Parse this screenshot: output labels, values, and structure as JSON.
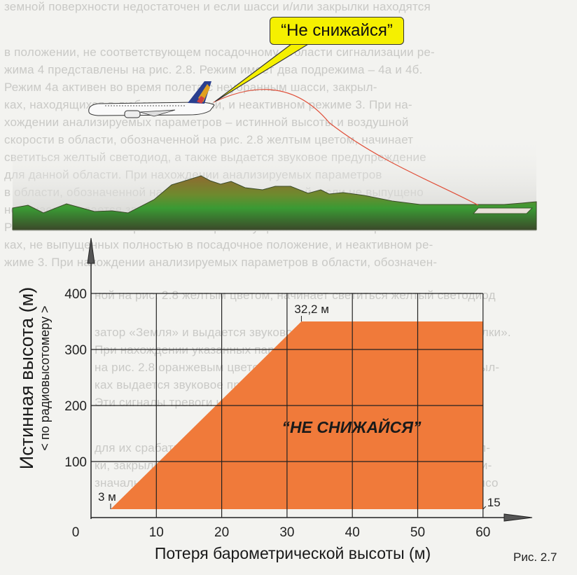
{
  "background_text": [
    "земной поверхности недостаточен и если шасси и/или закрылки находятся",
    "в положении, не соответствующем посадочному. Области сигнализации ре-",
    "жима 4 представлены на рис. 2.8. Режим имеет два подрежима – 4а и 4б.",
    "      Режим 4а активен во время полета с неубранным шасси, закрыл-",
    "ках, находящихся в любом положении, и неактивном режиме 3. При на-",
    "хождении анализируемых параметров – истинной высоты и воздушной",
    "скорости в области, обозначенной на рис. 2.8 желтым цветом, начинает",
    "светиться желтый светодиод, а также выдается звуковое предупреждение",
    "для данной области. При нахождении анализируемых параметров",
    "в области, обозначенной на рис. 2.8 и расположенной, если не выпущено",
    "ном шасси выдается звуковое предупреждение «Низко, шасси».",
    "      Режим 4б активен во время полета при выпущенном шасси и закрыл-",
    "ках, не выпущенных полностью в посадочное положение, и неактивном ре-",
    "жиме 3. При нахождении анализируемых параметров в области, обозначен-",
    "ной на рис. 2.8 желтым цветом, начинает светиться желтый светодиод",
    "затор «Земля» и выдается звуковое предупреждение «Низко, закрылки».",
    "      При нахождении указанных параметров в области, обозначенной",
    "на рис. 2.8 оранжевым цветом, при не выпущенных полностью закрыл-",
    "ках выдается звуковое предупреждение «Низко, рельеф».",
    "      Эти сигналы тревоги не повторяются, пока не исчезнут условия",
    "для их срабатывания, за исключением случая, когда шасси и закрыл-",
    "ки, закрылки могут быть выпущены после срабатывания световых ви-",
    "значальной выпуск шасси и закрылков соответственно. Истинная высо"
  ],
  "illustration": {
    "callout": "“Не  снижайся”",
    "colors": {
      "bubble": "#f5f000",
      "terrain_top": "#8a6a2a",
      "terrain_bottom": "#2f7a2a",
      "trajectory": "#e0503a"
    }
  },
  "figure_caption": "Рис. 2.7",
  "chart_data": {
    "type": "area",
    "title": "",
    "xlabel": "Потеря  барометрической  высоты  (м)",
    "ylabel": "Истинная  высота  (м)",
    "ylabel_sub": "< по радиовысотомеру >",
    "xlim": [
      0,
      60
    ],
    "ylim": [
      0,
      400
    ],
    "x_ticks": [
      0,
      10,
      20,
      30,
      40,
      50,
      60
    ],
    "y_ticks": [
      100,
      200,
      300,
      400
    ],
    "grid": true,
    "region": {
      "name": "“НЕ  СНИЖАЙСЯ”",
      "color": "#f07a3a",
      "points": [
        [
          3,
          15
        ],
        [
          32.2,
          350
        ],
        [
          60,
          350
        ],
        [
          60,
          15
        ]
      ]
    },
    "annotations": [
      {
        "text": "3 м",
        "x": 3,
        "y": 15
      },
      {
        "text": "32,2 м",
        "x": 32.2,
        "y": 350
      },
      {
        "text": "15",
        "x": 60,
        "y": 15
      }
    ]
  }
}
